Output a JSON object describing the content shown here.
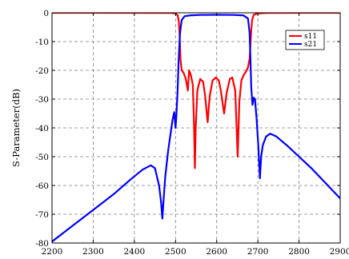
{
  "chart_data": {
    "type": "line",
    "title": "",
    "xlabel": "",
    "ylabel": "S-Parameter(dB)",
    "xlim": [
      2200,
      2900
    ],
    "ylim": [
      -80,
      0
    ],
    "xticks": [
      2200,
      2300,
      2400,
      2500,
      2600,
      2700,
      2800,
      2900
    ],
    "yticks": [
      0,
      -10,
      -20,
      -30,
      -40,
      -50,
      -60,
      -70,
      -80
    ],
    "grid": true,
    "legend_position": "top-right",
    "series": [
      {
        "name": "s11",
        "color": "#ff0000",
        "points": [
          [
            2200,
            0
          ],
          [
            2490,
            -0.05
          ],
          [
            2500,
            -0.2
          ],
          [
            2505,
            -0.8
          ],
          [
            2508,
            -3
          ],
          [
            2510,
            -8
          ],
          [
            2512,
            -16
          ],
          [
            2515,
            -20
          ],
          [
            2520,
            -21
          ],
          [
            2525,
            -23
          ],
          [
            2530,
            -27
          ],
          [
            2533,
            -20
          ],
          [
            2537,
            -21.5
          ],
          [
            2542,
            -25
          ],
          [
            2545,
            -39
          ],
          [
            2547,
            -54
          ],
          [
            2549,
            -40
          ],
          [
            2553,
            -27
          ],
          [
            2560,
            -23
          ],
          [
            2567,
            -24
          ],
          [
            2572,
            -29
          ],
          [
            2578,
            -38
          ],
          [
            2583,
            -29
          ],
          [
            2590,
            -23.5
          ],
          [
            2598,
            -22.5
          ],
          [
            2605,
            -23.5
          ],
          [
            2610,
            -27
          ],
          [
            2618,
            -35
          ],
          [
            2624,
            -28
          ],
          [
            2632,
            -23
          ],
          [
            2638,
            -22.5
          ],
          [
            2645,
            -27
          ],
          [
            2651,
            -50
          ],
          [
            2655,
            -31
          ],
          [
            2660,
            -23.5
          ],
          [
            2666,
            -21.5
          ],
          [
            2671,
            -20.5
          ],
          [
            2676,
            -19
          ],
          [
            2680,
            -16
          ],
          [
            2682,
            -11
          ],
          [
            2684,
            -6
          ],
          [
            2686,
            -2.5
          ],
          [
            2690,
            -0.7
          ],
          [
            2700,
            -0.2
          ],
          [
            2720,
            -0.05
          ],
          [
            2900,
            0
          ]
        ]
      },
      {
        "name": "s21",
        "color": "#0000ff",
        "points": [
          [
            2200,
            -79.5
          ],
          [
            2250,
            -74
          ],
          [
            2300,
            -68.5
          ],
          [
            2350,
            -63
          ],
          [
            2390,
            -58
          ],
          [
            2420,
            -54.5
          ],
          [
            2440,
            -53
          ],
          [
            2450,
            -54
          ],
          [
            2460,
            -60
          ],
          [
            2465,
            -66
          ],
          [
            2468,
            -71.5
          ],
          [
            2471,
            -65
          ],
          [
            2475,
            -57
          ],
          [
            2482,
            -48
          ],
          [
            2488,
            -42
          ],
          [
            2493,
            -37
          ],
          [
            2497,
            -34.5
          ],
          [
            2500,
            -40
          ],
          [
            2502,
            -36
          ],
          [
            2505,
            -27
          ],
          [
            2508,
            -15
          ],
          [
            2511,
            -7
          ],
          [
            2515,
            -2.5
          ],
          [
            2522,
            -1.2
          ],
          [
            2535,
            -0.9
          ],
          [
            2560,
            -0.75
          ],
          [
            2600,
            -0.7
          ],
          [
            2640,
            -0.75
          ],
          [
            2665,
            -0.9
          ],
          [
            2676,
            -2
          ],
          [
            2680,
            -7
          ],
          [
            2682,
            -16
          ],
          [
            2684,
            -26
          ],
          [
            2687,
            -32
          ],
          [
            2690,
            -29.5
          ],
          [
            2693,
            -30
          ],
          [
            2697,
            -37
          ],
          [
            2701,
            -46
          ],
          [
            2705,
            -57.5
          ],
          [
            2708,
            -50
          ],
          [
            2712,
            -46
          ],
          [
            2720,
            -43
          ],
          [
            2730,
            -42
          ],
          [
            2745,
            -43
          ],
          [
            2770,
            -46
          ],
          [
            2800,
            -50
          ],
          [
            2830,
            -54
          ],
          [
            2860,
            -58.5
          ],
          [
            2900,
            -64.5
          ]
        ]
      }
    ]
  }
}
